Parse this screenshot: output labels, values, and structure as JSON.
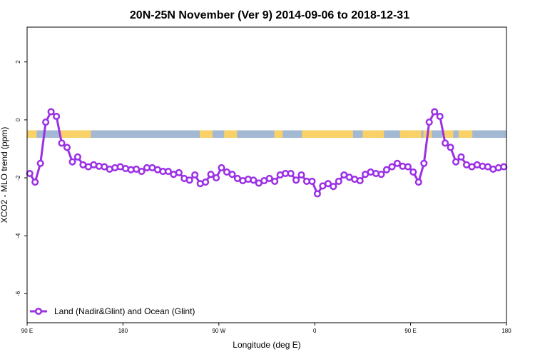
{
  "chart_data": {
    "type": "line",
    "title": "20N-25N November (Ver 9)   2014-09-06 to 2018-12-31",
    "xlabel": "Longitude (deg E)",
    "ylabel": "XCO2 - MLO trend (ppm)",
    "xlim": [
      90,
      540
    ],
    "ylim": [
      -7,
      3.2
    ],
    "x_ticks": [
      {
        "value": 90,
        "label": "90 E"
      },
      {
        "value": 180,
        "label": "180"
      },
      {
        "value": 270,
        "label": "90 W"
      },
      {
        "value": 360,
        "label": "0"
      },
      {
        "value": 450,
        "label": "90 E"
      },
      {
        "value": 540,
        "label": "180"
      }
    ],
    "y_ticks": [
      {
        "value": 2,
        "label": "2"
      },
      {
        "value": 0,
        "label": "0"
      },
      {
        "value": -2,
        "label": "-2"
      },
      {
        "value": -4,
        "label": "-4"
      },
      {
        "value": -6,
        "label": "-6"
      }
    ],
    "legend": {
      "position": "bottom-left",
      "entries": [
        "Land (Nadir&Glint) and Ocean (Glint)"
      ]
    },
    "band": {
      "y_range": [
        -0.62,
        -0.36
      ],
      "ocean_color": "#a3b8d3",
      "land_color": "#f8d168",
      "land_spans": [
        [
          90,
          99
        ],
        [
          120,
          150
        ],
        [
          252,
          264
        ],
        [
          275,
          287
        ],
        [
          322,
          330
        ],
        [
          348,
          396
        ],
        [
          405,
          425
        ],
        [
          440,
          460
        ],
        [
          462,
          470
        ],
        [
          480,
          490
        ],
        [
          495,
          508
        ]
      ]
    },
    "series": [
      {
        "name": "Land (Nadir&Glint) and Ocean (Glint)",
        "color": "#9b30e6",
        "x": [
          92.5,
          97.5,
          102.5,
          107.5,
          112.5,
          117.5,
          122.5,
          127.5,
          132.5,
          137.5,
          142.5,
          147.5,
          152.5,
          157.5,
          162.5,
          167.5,
          172.5,
          177.5,
          182.5,
          187.5,
          192.5,
          197.5,
          202.5,
          207.5,
          212.5,
          217.5,
          222.5,
          227.5,
          232.5,
          237.5,
          242.5,
          247.5,
          252.5,
          257.5,
          262.5,
          267.5,
          272.5,
          277.5,
          282.5,
          287.5,
          292.5,
          297.5,
          302.5,
          307.5,
          312.5,
          317.5,
          322.5,
          327.5,
          332.5,
          337.5,
          342.5,
          347.5,
          352.5,
          357.5,
          362.5,
          367.5,
          372.5,
          377.5,
          382.5,
          387.5,
          392.5,
          397.5,
          402.5,
          407.5,
          412.5,
          417.5,
          422.5,
          427.5,
          432.5,
          437.5,
          442.5,
          447.5,
          452.5,
          457.5,
          462.5,
          467.5,
          472.5,
          477.5,
          482.5,
          487.5,
          492.5,
          497.5,
          502.5,
          507.5,
          512.5,
          517.5,
          522.5,
          527.5,
          532.5,
          537.5
        ],
        "y": [
          -1.85,
          -2.15,
          -1.5,
          -0.08,
          0.28,
          0.12,
          -0.8,
          -0.95,
          -1.45,
          -1.28,
          -1.55,
          -1.62,
          -1.55,
          -1.6,
          -1.62,
          -1.7,
          -1.65,
          -1.62,
          -1.68,
          -1.72,
          -1.7,
          -1.78,
          -1.65,
          -1.65,
          -1.72,
          -1.78,
          -1.78,
          -1.88,
          -1.82,
          -2.02,
          -2.08,
          -1.9,
          -2.2,
          -2.15,
          -1.88,
          -2.0,
          -1.65,
          -1.8,
          -1.88,
          -2.02,
          -2.1,
          -2.05,
          -2.08,
          -2.18,
          -2.1,
          -2.02,
          -2.12,
          -1.9,
          -1.85,
          -1.85,
          -2.08,
          -1.9,
          -2.12,
          -2.12,
          -2.55,
          -2.28,
          -2.2,
          -2.3,
          -2.12,
          -1.9,
          -1.98,
          -2.05,
          -2.1,
          -1.88,
          -1.8,
          -1.85,
          -1.88,
          -1.72,
          -1.62,
          -1.5,
          -1.6,
          -1.62,
          -1.8,
          -2.15,
          -1.5,
          -0.08,
          0.28,
          0.12,
          -0.8,
          -0.95,
          -1.45,
          -1.28,
          -1.55,
          -1.62,
          -1.55,
          -1.6,
          -1.62,
          -1.7,
          -1.65,
          -1.62
        ]
      }
    ]
  }
}
